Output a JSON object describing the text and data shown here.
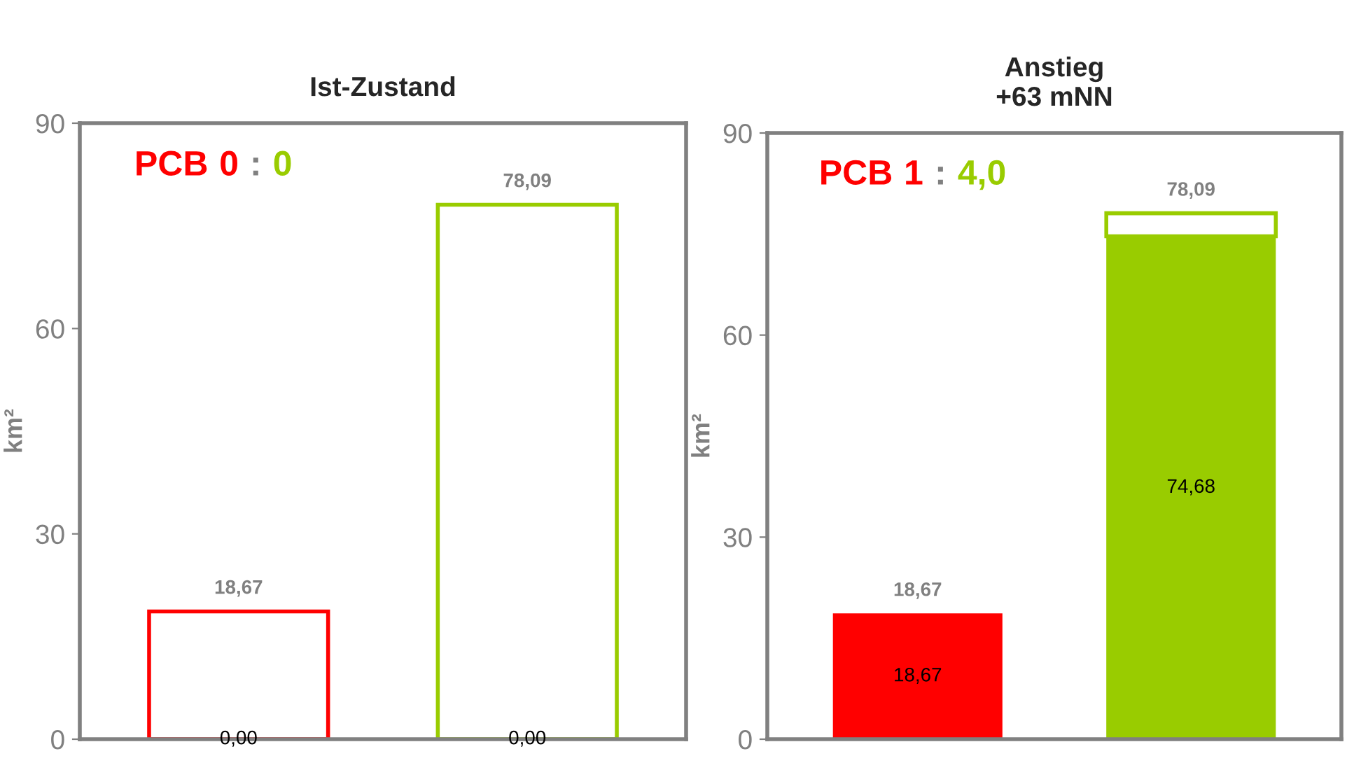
{
  "chart_data": [
    {
      "type": "bar",
      "title": "Ist-Zustand",
      "ylabel": "km²",
      "categories": [
        null,
        null
      ],
      "stacked": true,
      "ylim": [
        0,
        90
      ],
      "yticks": [
        0,
        30,
        60,
        90
      ],
      "grid": false,
      "legend": false,
      "tick_labels": "y",
      "series": [
        {
          "colors": [
            "#ff0000",
            "#99cc00"
          ],
          "values": [
            0,
            0
          ],
          "value_labels": [
            "0,00",
            "0,00"
          ]
        },
        {
          "colors": [
            "#ffffff",
            "#ffffff"
          ],
          "values": [
            18.67,
            78.09
          ]
        }
      ],
      "totals": [
        "18,67",
        "78,09"
      ],
      "annotations": [
        "PCB 0 : 0"
      ]
    },
    {
      "type": "bar",
      "title": "Anstieg\n+63 mNN",
      "ylabel": "km²",
      "categories": [
        null,
        null
      ],
      "stacked": true,
      "ylim": [
        0,
        90
      ],
      "yticks": [
        0,
        30,
        60,
        90
      ],
      "grid": false,
      "legend": false,
      "tick_labels": "y",
      "series": [
        {
          "colors": [
            "#ff0000",
            "#99cc00"
          ],
          "values": [
            18.67,
            74.68
          ],
          "value_labels": [
            "18,67",
            "74,68"
          ]
        },
        {
          "colors": [
            "#ffffff",
            "#ffffff"
          ],
          "values": [
            0,
            3.41
          ]
        }
      ],
      "totals": [
        "18,67",
        "78,09"
      ],
      "annotations": [
        "PCB 1 : 4,0"
      ]
    }
  ]
}
